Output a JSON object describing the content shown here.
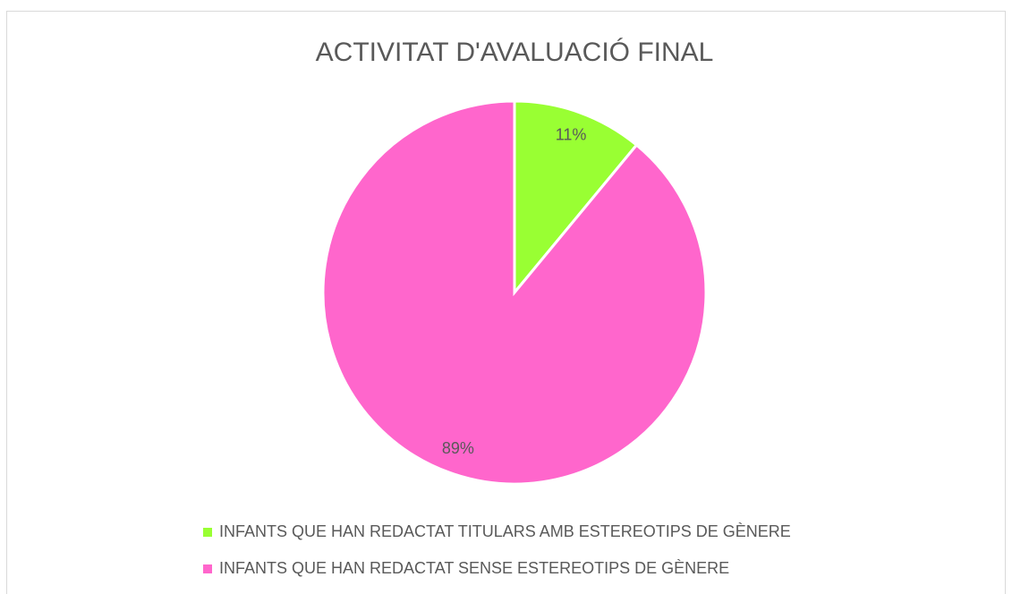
{
  "chart_data": {
    "type": "pie",
    "title": "ACTIVITAT D'AVALUACIÓ FINAL",
    "categories": [
      "INFANTS QUE HAN REDACTAT TITULARS AMB ESTEREOTIPS DE GÈNERE",
      "INFANTS QUE HAN REDACTAT SENSE ESTEREOTIPS DE GÈNERE"
    ],
    "values": [
      11,
      89
    ],
    "value_labels": [
      "11%",
      "89%"
    ],
    "colors": [
      "#99ff33",
      "#ff66cc"
    ],
    "legend": "bottom"
  }
}
